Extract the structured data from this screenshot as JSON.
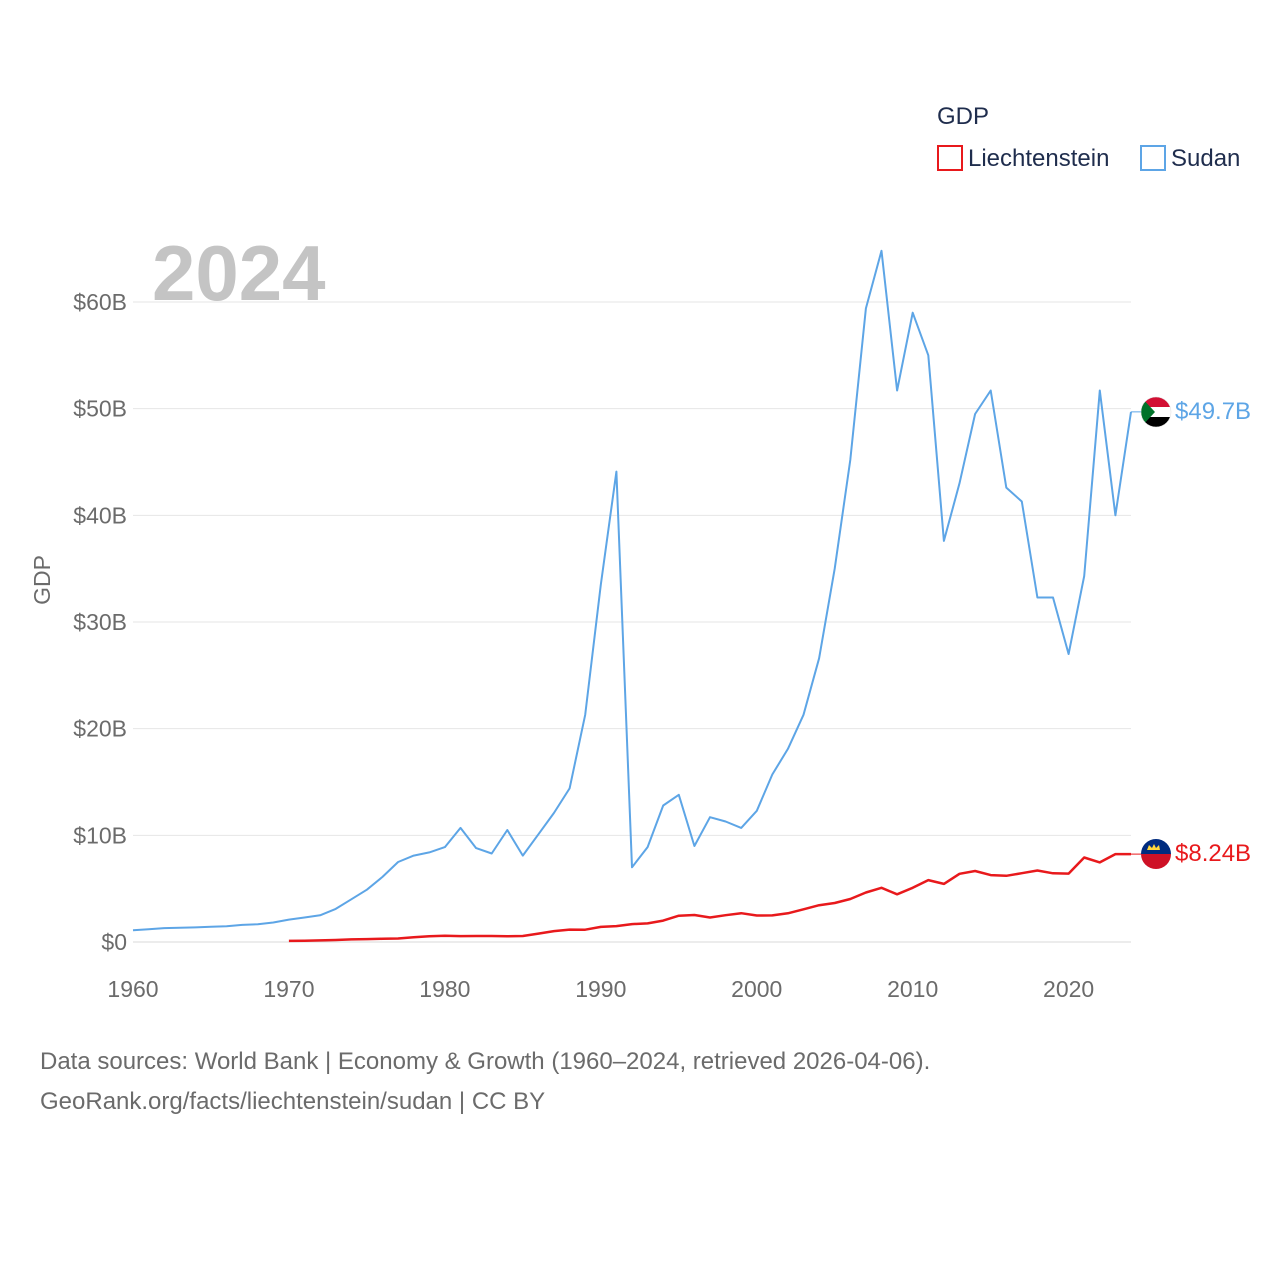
{
  "chart_data": {
    "type": "line",
    "title": "GDP",
    "year_watermark": "2024",
    "ylabel": "GDP",
    "xlabel": "",
    "xlim": [
      1960,
      2024
    ],
    "ylim": [
      0,
      65
    ],
    "x_ticks": [
      1960,
      1970,
      1980,
      1990,
      2000,
      2010,
      2020
    ],
    "x_tick_labels": [
      "1960",
      "1970",
      "1980",
      "1990",
      "2000",
      "2010",
      "2020"
    ],
    "y_ticks": [
      0,
      10,
      20,
      30,
      40,
      50,
      60
    ],
    "y_tick_labels": [
      "$0",
      "$10B",
      "$20B",
      "$30B",
      "$40B",
      "$50B",
      "$60B"
    ],
    "grid": true,
    "legend": {
      "title": "GDP",
      "placement": "top-right"
    },
    "series": [
      {
        "name": "Liechtenstein",
        "color": "#e8191c",
        "end_label": "$8.24B",
        "flag": "liechtenstein-flag",
        "x": [
          1970,
          1971,
          1972,
          1973,
          1974,
          1975,
          1976,
          1977,
          1978,
          1979,
          1980,
          1981,
          1982,
          1983,
          1984,
          1985,
          1986,
          1987,
          1988,
          1989,
          1990,
          1991,
          1992,
          1993,
          1994,
          1995,
          1996,
          1997,
          1998,
          1999,
          2000,
          2001,
          2002,
          2003,
          2004,
          2005,
          2006,
          2007,
          2008,
          2009,
          2010,
          2011,
          2012,
          2013,
          2014,
          2015,
          2016,
          2017,
          2018,
          2019,
          2020,
          2021,
          2022,
          2023,
          2024
        ],
        "values": [
          0.1,
          0.12,
          0.15,
          0.19,
          0.24,
          0.27,
          0.3,
          0.33,
          0.44,
          0.53,
          0.58,
          0.55,
          0.56,
          0.56,
          0.53,
          0.56,
          0.79,
          1.02,
          1.16,
          1.15,
          1.42,
          1.49,
          1.68,
          1.74,
          2.01,
          2.47,
          2.53,
          2.3,
          2.51,
          2.7,
          2.48,
          2.49,
          2.69,
          3.07,
          3.45,
          3.66,
          4.03,
          4.64,
          5.08,
          4.47,
          5.08,
          5.8,
          5.45,
          6.39,
          6.66,
          6.27,
          6.21,
          6.45,
          6.7,
          6.44,
          6.41,
          7.92,
          7.46,
          8.24,
          8.24
        ]
      },
      {
        "name": "Sudan",
        "color": "#5da5e6",
        "end_label": "$49.7B",
        "flag": "sudan-flag",
        "x": [
          1960,
          1961,
          1962,
          1963,
          1964,
          1965,
          1966,
          1967,
          1968,
          1969,
          1970,
          1971,
          1972,
          1973,
          1974,
          1975,
          1976,
          1977,
          1978,
          1979,
          1980,
          1981,
          1982,
          1983,
          1984,
          1985,
          1986,
          1987,
          1988,
          1989,
          1990,
          1991,
          1992,
          1993,
          1994,
          1995,
          1996,
          1997,
          1998,
          1999,
          2000,
          2001,
          2002,
          2003,
          2004,
          2005,
          2006,
          2007,
          2008,
          2009,
          2010,
          2011,
          2012,
          2013,
          2014,
          2015,
          2016,
          2017,
          2018,
          2019,
          2020,
          2021,
          2022,
          2023,
          2024
        ],
        "values": [
          1.1,
          1.2,
          1.3,
          1.33,
          1.37,
          1.43,
          1.47,
          1.6,
          1.67,
          1.83,
          2.1,
          2.3,
          2.5,
          3.1,
          4,
          4.9,
          6.1,
          7.5,
          8.1,
          8.4,
          8.9,
          10.7,
          8.8,
          8.3,
          10.5,
          8.1,
          10.1,
          12.1,
          14.4,
          21.3,
          33.5,
          44.1,
          7.0,
          8.9,
          12.8,
          13.8,
          9.0,
          11.7,
          11.3,
          10.7,
          12.3,
          15.7,
          18.1,
          21.3,
          26.6,
          35.0,
          45.2,
          59.4,
          64.8,
          51.7,
          59.0,
          55.0,
          37.6,
          43.0,
          49.5,
          51.7,
          42.6,
          41.3,
          32.3,
          32.3,
          27.0,
          34.3,
          51.7,
          40.0,
          49.7
        ]
      }
    ]
  },
  "footer": {
    "line1": "Data sources: World Bank | Economy & Growth (1960–2024, retrieved 2026-04-06).",
    "line2": "GeoRank.org/facts/liechtenstein/sudan | CC BY"
  }
}
